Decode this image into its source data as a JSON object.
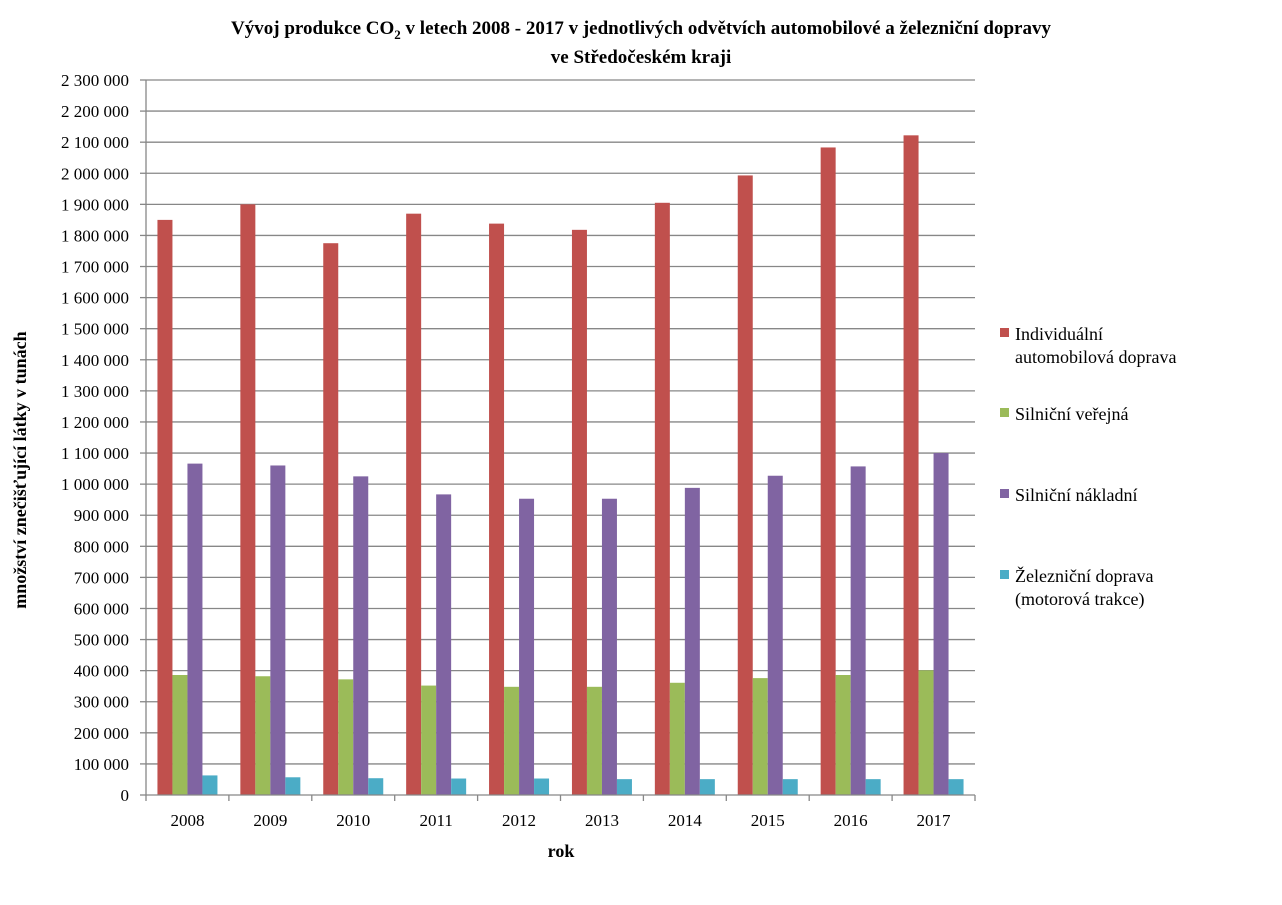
{
  "chart_data": {
    "type": "bar",
    "title_line1_prefix": "Vývoj produkce CO",
    "title_line1_subscript": "2",
    "title_line1_suffix": " v letech 2008 - 2017 v jednotlivých odvětvích automobilové a železniční dopravy",
    "title_line2": "ve Středočeském kraji",
    "xlabel": "rok",
    "ylabel": "množství znečišťující látky v tunách",
    "ylim": [
      0,
      2300000
    ],
    "ytick_step": 100000,
    "yticks": [
      "0",
      "100 000",
      "200 000",
      "300 000",
      "400 000",
      "500 000",
      "600 000",
      "700 000",
      "800 000",
      "900 000",
      "1 000 000",
      "1 100 000",
      "1 200 000",
      "1 300 000",
      "1 400 000",
      "1 500 000",
      "1 600 000",
      "1 700 000",
      "1 800 000",
      "1 900 000",
      "2 000 000",
      "2 100 000",
      "2 200 000",
      "2 300 000"
    ],
    "grid": true,
    "legend_position": "right",
    "categories": [
      "2008",
      "2009",
      "2010",
      "2011",
      "2012",
      "2013",
      "2014",
      "2015",
      "2016",
      "2017"
    ],
    "series": [
      {
        "name_lines": [
          "Individuální",
          "automobilová doprava"
        ],
        "color": "#C0504D",
        "values": [
          1850000,
          1900000,
          1775000,
          1870000,
          1838000,
          1818000,
          1905000,
          1993000,
          2083000,
          2122000
        ]
      },
      {
        "name_lines": [
          "Silniční veřejná"
        ],
        "color": "#9BBB59",
        "values": [
          386000,
          382000,
          372000,
          352000,
          348000,
          348000,
          361000,
          376000,
          386000,
          401000
        ]
      },
      {
        "name_lines": [
          "Silniční nákladní"
        ],
        "color": "#8064A2",
        "values": [
          1066000,
          1060000,
          1025000,
          967000,
          953000,
          953000,
          988000,
          1027000,
          1057000,
          1100000
        ]
      },
      {
        "name_lines": [
          "Železniční doprava",
          "(motorová trakce)"
        ],
        "color": "#4BACC6",
        "values": [
          63000,
          57000,
          54000,
          53000,
          53000,
          51000,
          51000,
          51000,
          51000,
          51000
        ]
      }
    ]
  }
}
